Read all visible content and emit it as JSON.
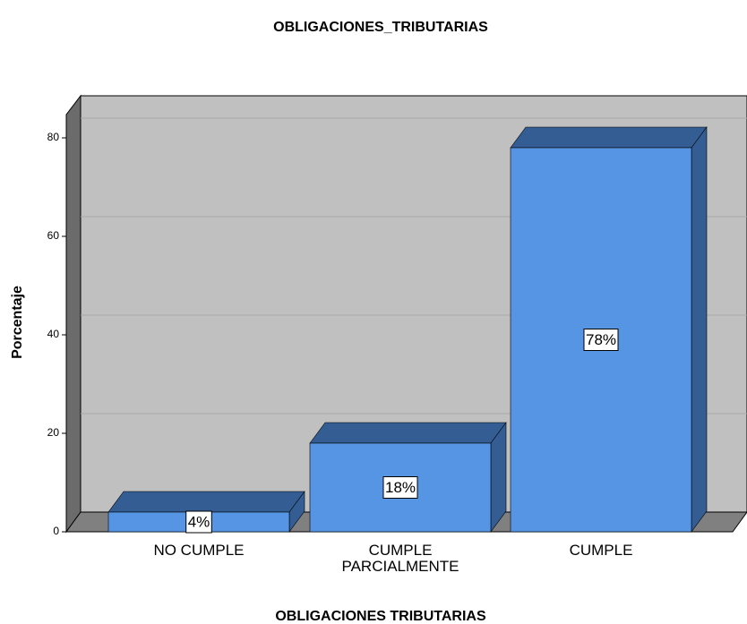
{
  "chart_data": {
    "type": "bar3d",
    "title": "OBLIGACIONES_TRIBUTARIAS",
    "x_label": "OBLIGACIONES TRIBUTARIAS",
    "y_label": "Porcentaje",
    "categories": [
      "NO CUMPLE",
      "CUMPLE PARCIALMENTE",
      "CUMPLE"
    ],
    "values": [
      4,
      18,
      78
    ],
    "value_labels": [
      "4%",
      "18%",
      "78%"
    ],
    "color": "#5595e4",
    "ylim": [
      0,
      85
    ],
    "yticks": [
      0,
      20,
      40,
      60,
      80
    ],
    "grid": true
  }
}
